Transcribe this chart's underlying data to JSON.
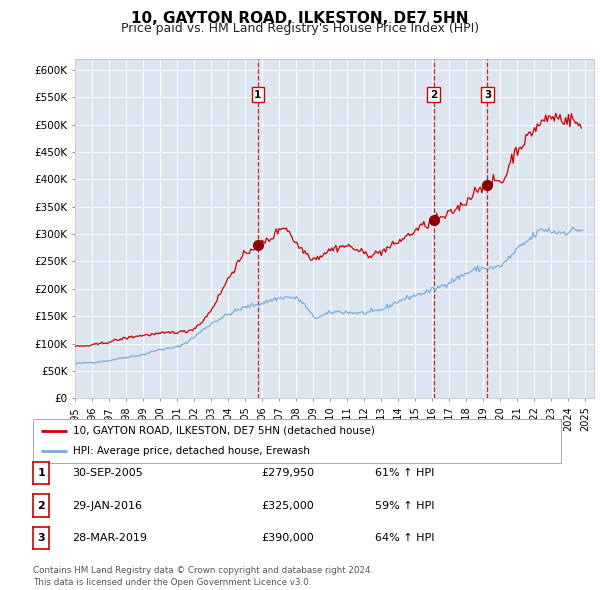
{
  "title": "10, GAYTON ROAD, ILKESTON, DE7 5HN",
  "subtitle": "Price paid vs. HM Land Registry's House Price Index (HPI)",
  "title_fontsize": 11,
  "subtitle_fontsize": 9,
  "background_color": "#ffffff",
  "plot_bg_color": "#dde6f0",
  "grid_color": "#ffffff",
  "ylim": [
    0,
    620000
  ],
  "xlim_start": 1995.0,
  "xlim_end": 2025.5,
  "yticks": [
    0,
    50000,
    100000,
    150000,
    200000,
    250000,
    300000,
    350000,
    400000,
    450000,
    500000,
    550000,
    600000
  ],
  "ytick_labels": [
    "£0",
    "£50K",
    "£100K",
    "£150K",
    "£200K",
    "£250K",
    "£300K",
    "£350K",
    "£400K",
    "£450K",
    "£500K",
    "£550K",
    "£600K"
  ],
  "xticks": [
    1995,
    1996,
    1997,
    1998,
    1999,
    2000,
    2001,
    2002,
    2003,
    2004,
    2005,
    2006,
    2007,
    2008,
    2009,
    2010,
    2011,
    2012,
    2013,
    2014,
    2015,
    2016,
    2017,
    2018,
    2019,
    2020,
    2021,
    2022,
    2023,
    2024,
    2025
  ],
  "sale_color": "#cc0000",
  "hpi_color": "#7aaddb",
  "vline_color": "#cc0000",
  "marker_color": "#8B0000",
  "legend_label_sale": "10, GAYTON ROAD, ILKESTON, DE7 5HN (detached house)",
  "legend_label_hpi": "HPI: Average price, detached house, Erewash",
  "sales": [
    {
      "year": 2005.75,
      "price": 279950,
      "label": "1"
    },
    {
      "year": 2016.08,
      "price": 325000,
      "label": "2"
    },
    {
      "year": 2019.24,
      "price": 390000,
      "label": "3"
    }
  ],
  "sale_annotations": [
    {
      "label": "1",
      "date": "30-SEP-2005",
      "price": "£279,950",
      "hpi_pct": "61% ↑ HPI"
    },
    {
      "label": "2",
      "date": "29-JAN-2016",
      "price": "£325,000",
      "hpi_pct": "59% ↑ HPI"
    },
    {
      "label": "3",
      "date": "28-MAR-2019",
      "price": "£390,000",
      "hpi_pct": "64% ↑ HPI"
    }
  ],
  "footer": "Contains HM Land Registry data © Crown copyright and database right 2024.\nThis data is licensed under the Open Government Licence v3.0."
}
